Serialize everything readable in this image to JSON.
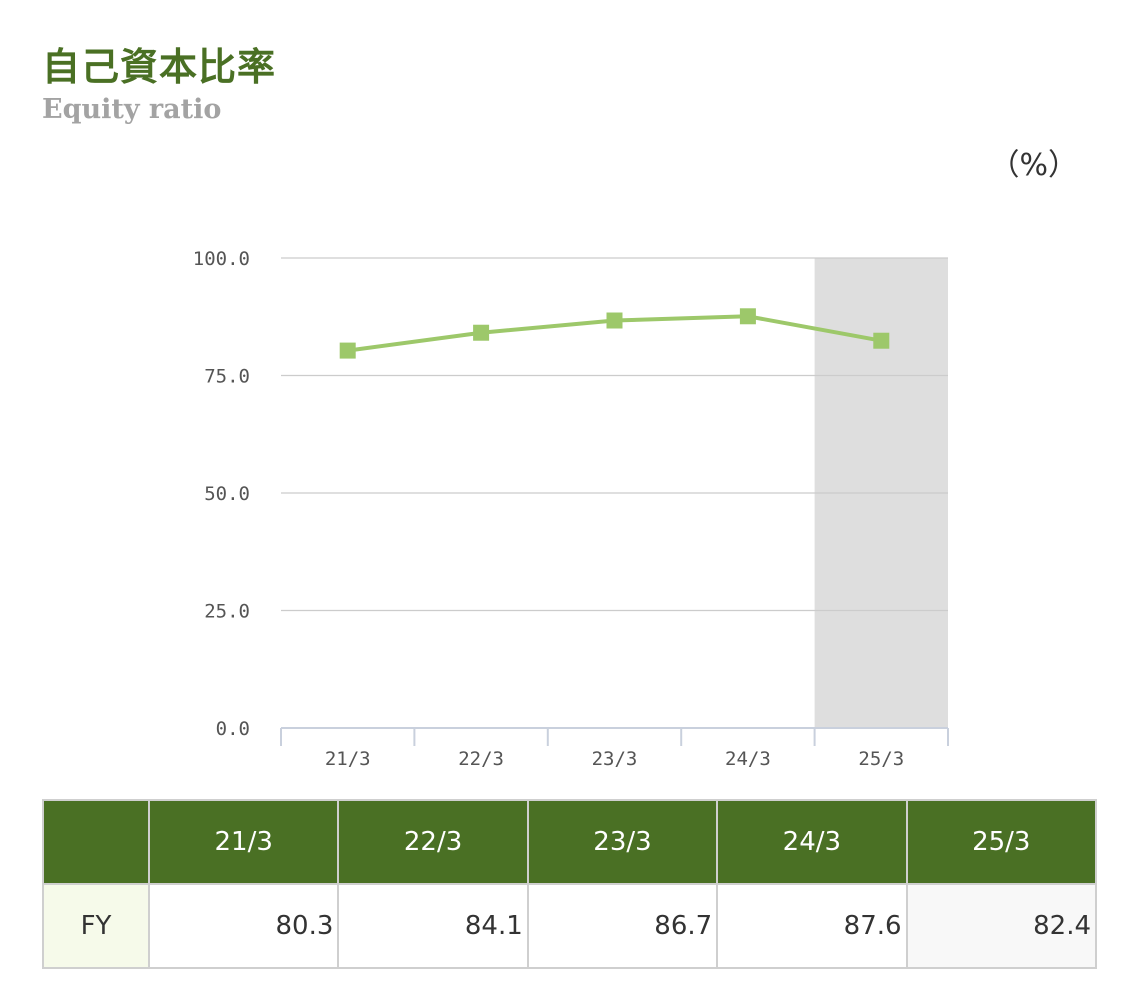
{
  "title": "自己資本比率",
  "subtitle": "Equity ratio",
  "unit_label": "（%）",
  "chart_data": {
    "type": "line",
    "categories": [
      "21/3",
      "22/3",
      "23/3",
      "24/3",
      "25/3"
    ],
    "series": [
      {
        "values": [
          80.3,
          84.1,
          86.7,
          87.6,
          82.4
        ]
      }
    ],
    "ylim": [
      0,
      100
    ],
    "yticks": [
      "0.0",
      "25.0",
      "50.0",
      "75.0",
      "100.0"
    ],
    "grid": true,
    "highlighted_category": "25/3",
    "line_color": "#9dc86a",
    "highlight_color": "#dedede"
  },
  "table": {
    "corner_label": "",
    "headers": [
      "21/3",
      "22/3",
      "23/3",
      "24/3",
      "25/3"
    ],
    "rows": [
      {
        "label": "FY",
        "values": [
          "80.3",
          "84.1",
          "86.7",
          "87.6",
          "82.4"
        ]
      }
    ]
  },
  "colors": {
    "brand_green": "#4a7024",
    "title_gray": "#a3a3a3"
  }
}
